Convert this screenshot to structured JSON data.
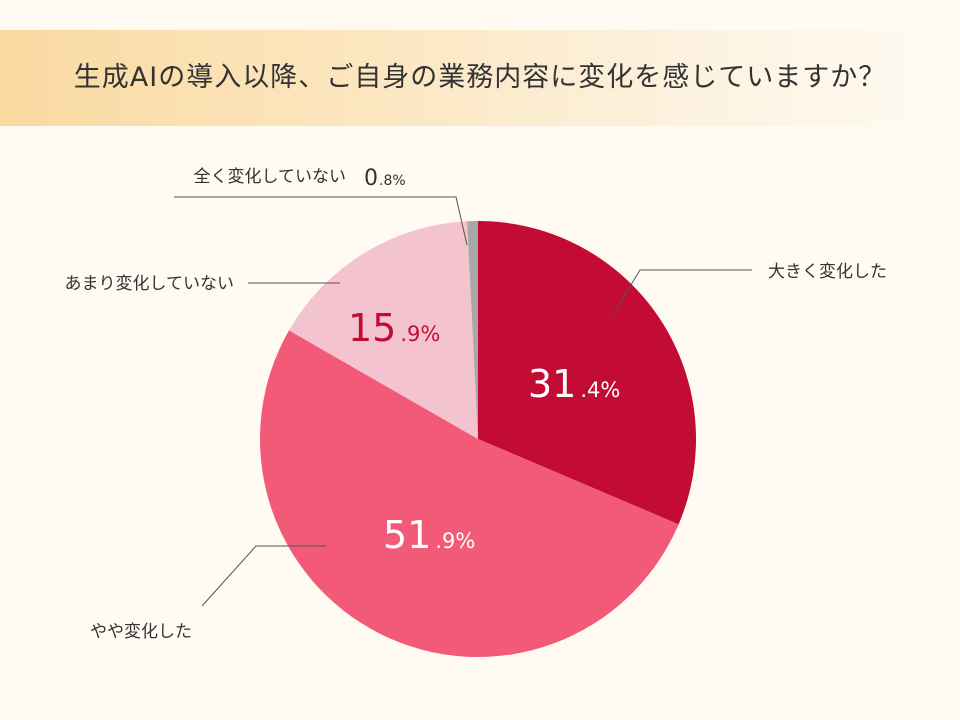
{
  "title": "生成AIの導入以降、ご自身の業務内容に変化を感じていますか？",
  "chart_data": {
    "type": "pie",
    "title": "生成AIの導入以降、ご自身の業務内容に変化を感じていますか？",
    "start_angle": "12 o'clock",
    "direction": "clockwise",
    "slices": [
      {
        "label": "大きく変化した",
        "value": 31.4,
        "value_int": "31",
        "value_dec": ".4%",
        "color": "#c20c33",
        "text_color": "#ffffff"
      },
      {
        "label": "やや変化した",
        "value": 51.9,
        "value_int": "51",
        "value_dec": ".9%",
        "color": "#f25a78",
        "text_color": "#ffffff"
      },
      {
        "label": "あまり変化していない",
        "value": 15.9,
        "value_int": "15",
        "value_dec": ".9%",
        "color": "#f3c4d0",
        "text_color": "#c20c33"
      },
      {
        "label": "全く変化していない",
        "value": 0.8,
        "value_int": "0",
        "value_dec": ".8%",
        "color": "#a8a8a8",
        "text_color": "#333333"
      }
    ]
  }
}
